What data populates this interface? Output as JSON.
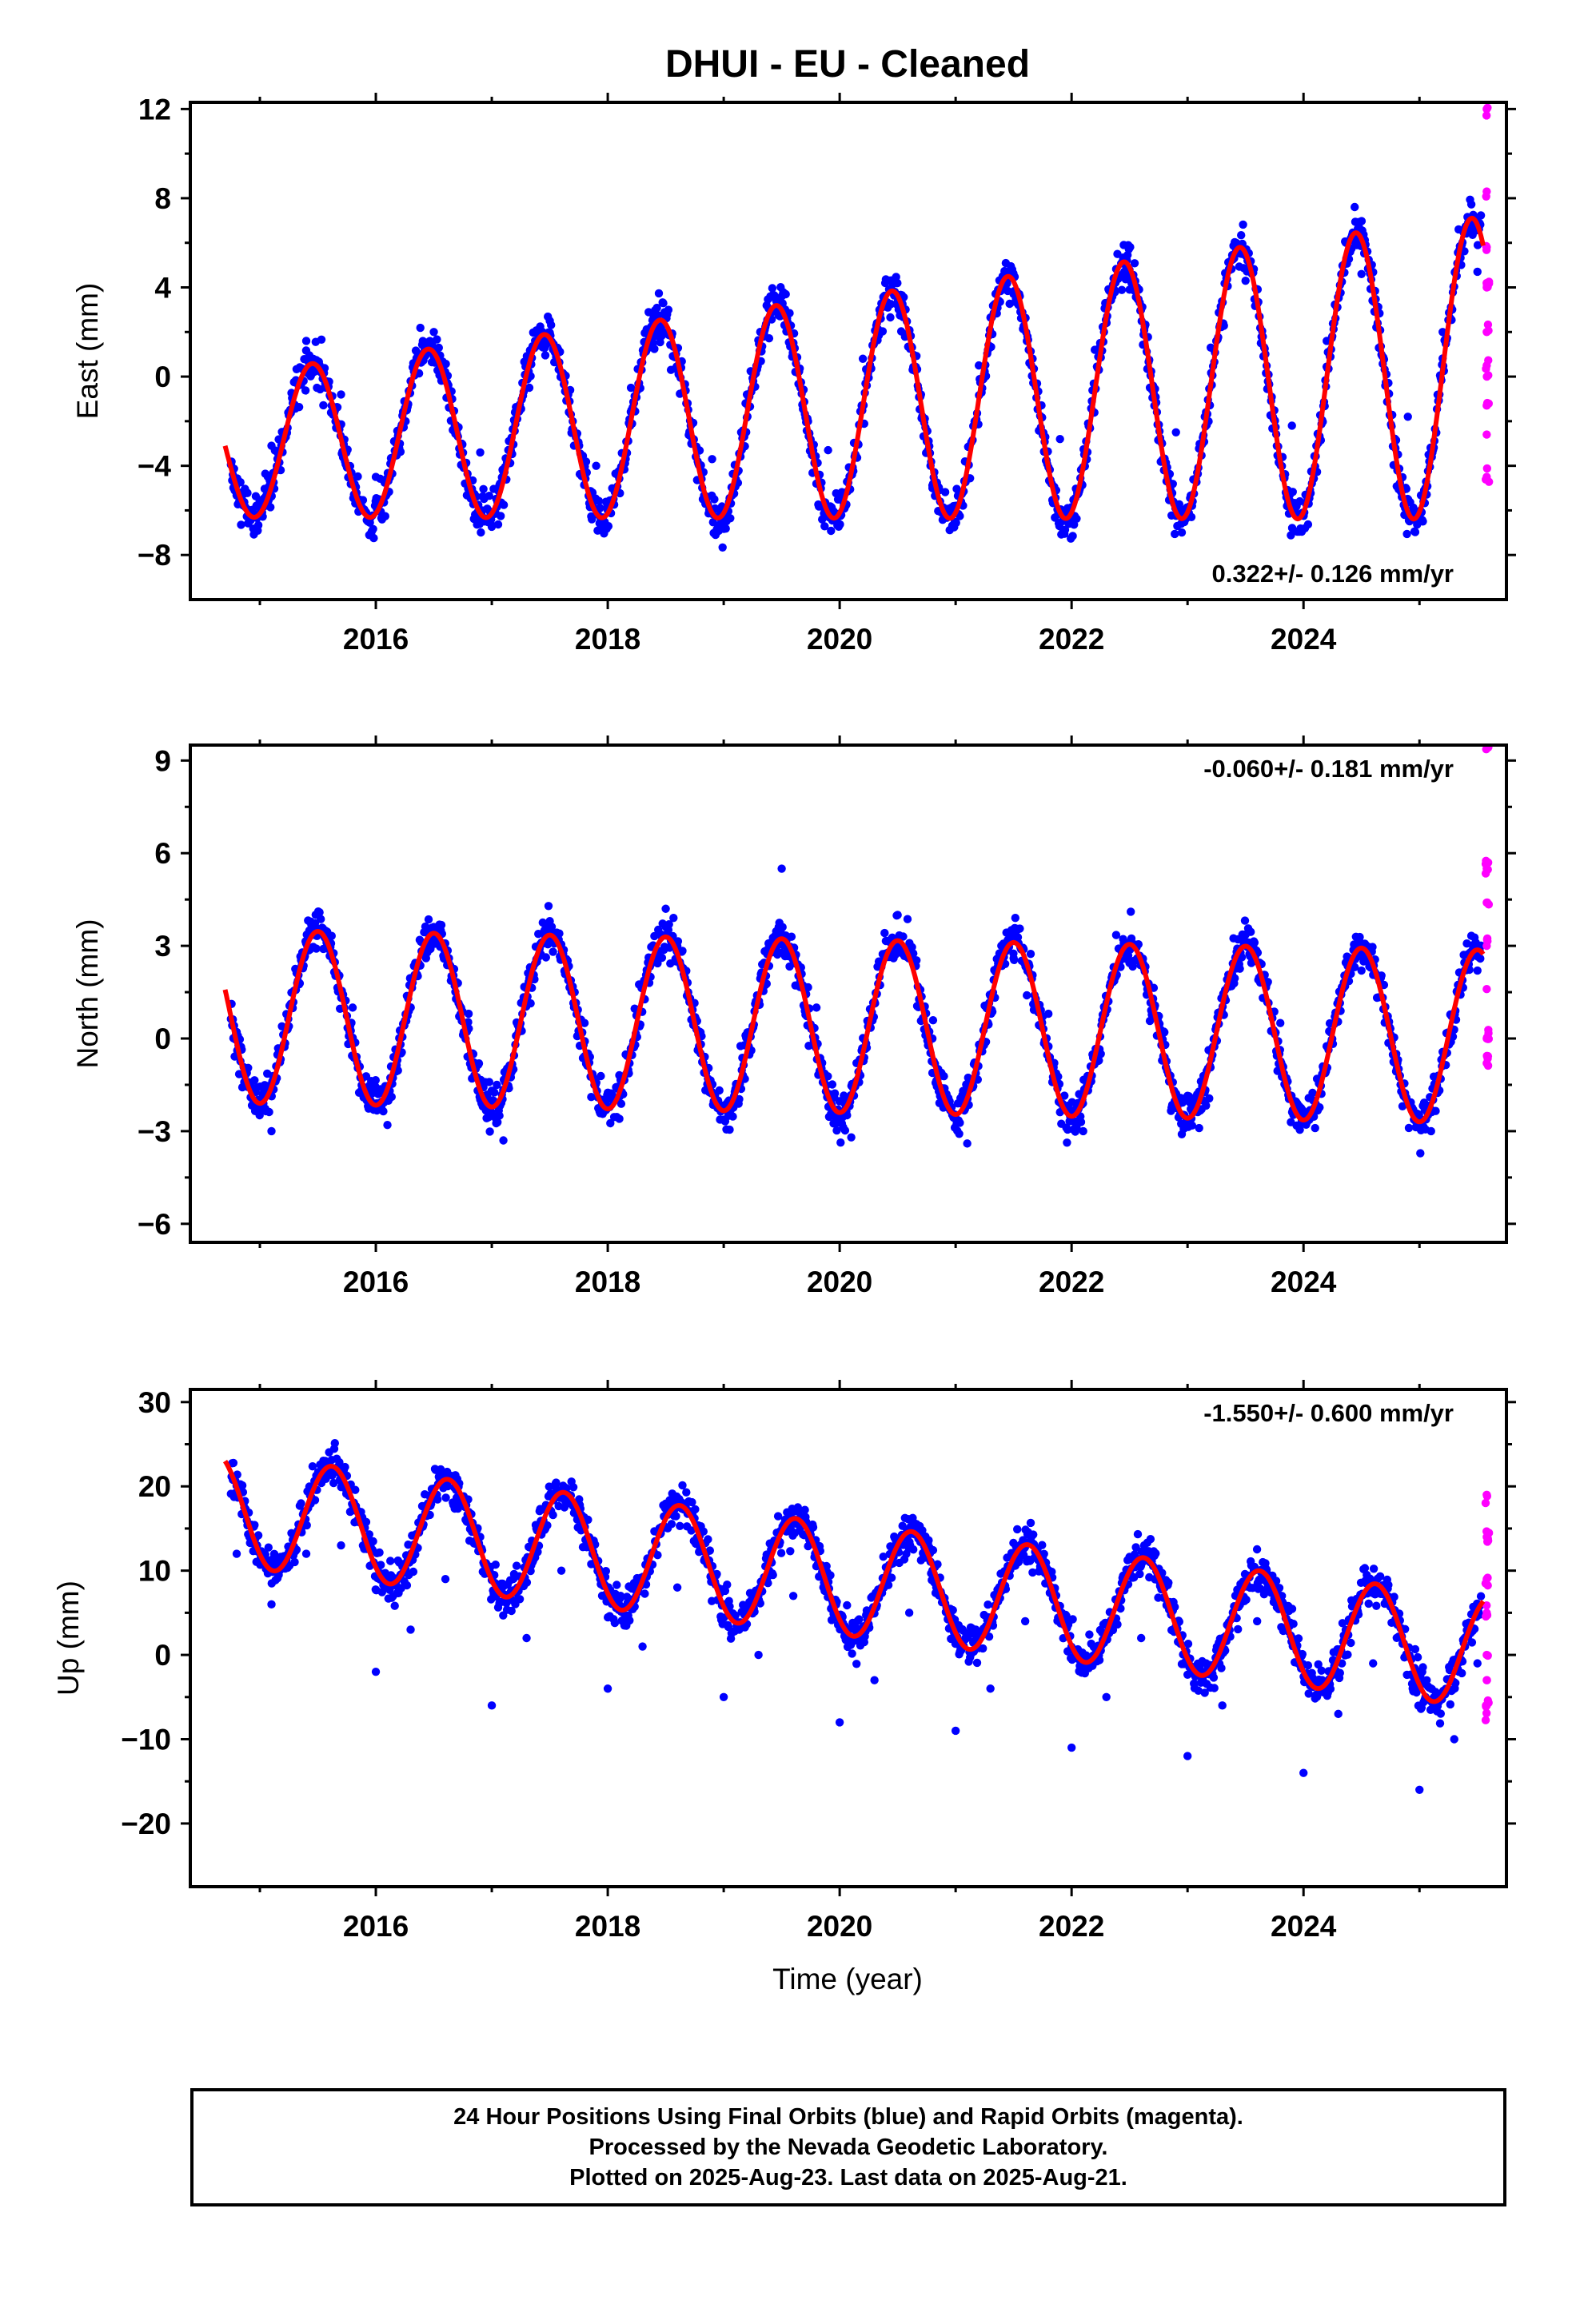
{
  "title": "DHUI  - EU - Cleaned",
  "xlabel": "Time (year)",
  "footer": {
    "line1": "24 Hour Positions Using Final Orbits (blue) and Rapid Orbits (magenta).",
    "line2": "Processed by the Nevada Geodetic Laboratory.",
    "line3": "Plotted on 2025-Aug-23. Last data on 2025-Aug-21."
  },
  "colors": {
    "final": "#0000ff",
    "rapid": "#ff00ff",
    "model": "#ff0000",
    "axes": "#000000"
  },
  "chart_data": [
    {
      "type": "scatter",
      "ylabel": "East (mm)",
      "rate_label": "0.322+/- 0.126 mm/yr",
      "rate_position": "bottom-right",
      "xlim": [
        2014.4,
        2025.75
      ],
      "ylim": [
        -10,
        12.3
      ],
      "xticks": [
        2016,
        2018,
        2020,
        2022,
        2024
      ],
      "yticks": [
        12,
        8,
        4,
        0,
        -4,
        -8
      ],
      "model": {
        "start": 2014.7,
        "end": 2025.55,
        "offset": -1.4,
        "slope": 0.322,
        "amplitude": 3.3,
        "amplitude_growth": 0.01,
        "peak_year_fraction": 0.45
      },
      "series": [
        {
          "values": [
            [
              2014.8,
              -4.8
            ],
            [
              2015.1,
              -3.1
            ],
            [
              2015.4,
              1.6
            ],
            [
              2015.7,
              -0.8
            ],
            [
              2016.0,
              -4.5
            ],
            [
              2016.3,
              -0.2
            ],
            [
              2016.5,
              2.0
            ],
            [
              2016.9,
              -3.4
            ],
            [
              2017.2,
              -1.6
            ],
            [
              2017.5,
              2.5
            ],
            [
              2017.9,
              -4.0
            ],
            [
              2018.2,
              -0.5
            ],
            [
              2018.5,
              2.7
            ],
            [
              2018.9,
              -3.7
            ],
            [
              2019.2,
              -0.8
            ],
            [
              2019.5,
              3.0
            ],
            [
              2019.9,
              -3.3
            ],
            [
              2020.2,
              0.8
            ],
            [
              2020.5,
              3.2
            ],
            [
              2020.8,
              -5.0
            ],
            [
              2021.2,
              0.5
            ],
            [
              2021.5,
              3.7
            ],
            [
              2021.9,
              -2.8
            ],
            [
              2022.2,
              1.2
            ],
            [
              2022.5,
              3.9
            ],
            [
              2022.9,
              -2.5
            ],
            [
              2023.2,
              1.3
            ],
            [
              2023.5,
              4.3
            ],
            [
              2023.9,
              -2.2
            ],
            [
              2024.2,
              1.6
            ],
            [
              2024.5,
              4.6
            ],
            [
              2024.9,
              -1.8
            ],
            [
              2025.2,
              2.0
            ],
            [
              2025.5,
              4.7
            ]
          ]
        },
        {
          "values": [
            [
              2025.58,
              12.0
            ],
            [
              2025.58,
              8.3
            ],
            [
              2025.58,
              5.8
            ],
            [
              2025.58,
              4.0
            ],
            [
              2025.58,
              2.0
            ],
            [
              2025.58,
              0.5
            ],
            [
              2025.58,
              -1.3
            ],
            [
              2025.58,
              -2.6
            ],
            [
              2025.58,
              -4.5
            ]
          ]
        }
      ]
    },
    {
      "type": "scatter",
      "ylabel": "North (mm)",
      "rate_label": "-0.060+/- 0.181 mm/yr",
      "rate_position": "top-right",
      "xlim": [
        2014.4,
        2025.75
      ],
      "ylim": [
        -6.6,
        9.5
      ],
      "xticks": [
        2016,
        2018,
        2020,
        2022,
        2024
      ],
      "yticks": [
        9,
        6,
        3,
        0,
        -3,
        -6
      ],
      "model": {
        "start": 2014.7,
        "end": 2025.55,
        "offset": 0.4,
        "slope": -0.06,
        "amplitude": 2.8,
        "amplitude_growth": 0.0,
        "peak_year_fraction": 0.5
      },
      "series": [
        {
          "values": [
            [
              2014.8,
              0.2
            ],
            [
              2015.1,
              -3.0
            ],
            [
              2015.5,
              3.5
            ],
            [
              2015.8,
              1.0
            ],
            [
              2016.1,
              -2.8
            ],
            [
              2016.5,
              3.3
            ],
            [
              2016.8,
              0.8
            ],
            [
              2017.1,
              -3.3
            ],
            [
              2017.5,
              3.8
            ],
            [
              2017.8,
              0.5
            ],
            [
              2018.1,
              -2.6
            ],
            [
              2018.5,
              4.2
            ],
            [
              2018.8,
              0.2
            ],
            [
              2019.1,
              -2.0
            ],
            [
              2019.5,
              5.5
            ],
            [
              2019.8,
              1.0
            ],
            [
              2020.1,
              -3.2
            ],
            [
              2020.5,
              4.0
            ],
            [
              2020.8,
              0.0
            ],
            [
              2021.1,
              -3.4
            ],
            [
              2021.5,
              2.6
            ],
            [
              2021.8,
              0.8
            ],
            [
              2022.1,
              -3.0
            ],
            [
              2022.5,
              3.0
            ],
            [
              2022.8,
              0.2
            ],
            [
              2023.1,
              -2.9
            ],
            [
              2023.5,
              3.0
            ],
            [
              2023.8,
              0.5
            ],
            [
              2024.1,
              -2.9
            ],
            [
              2024.5,
              2.2
            ],
            [
              2024.8,
              -0.5
            ],
            [
              2025.1,
              -3.0
            ],
            [
              2025.5,
              2.2
            ]
          ]
        },
        {
          "values": [
            [
              2025.58,
              9.6
            ],
            [
              2025.58,
              5.5
            ],
            [
              2025.58,
              4.4
            ],
            [
              2025.58,
              3.0
            ],
            [
              2025.58,
              1.6
            ],
            [
              2025.58,
              0.0
            ],
            [
              2025.58,
              -0.8
            ]
          ]
        }
      ]
    },
    {
      "type": "scatter",
      "ylabel": "Up (mm)",
      "rate_label": "-1.550+/- 0.600 mm/yr",
      "rate_position": "top-right",
      "xlim": [
        2014.4,
        2025.75
      ],
      "ylim": [
        -27.5,
        31.5
      ],
      "xticks": [
        2016,
        2018,
        2020,
        2022,
        2024
      ],
      "yticks": [
        30,
        20,
        10,
        0,
        -10,
        -20
      ],
      "model": {
        "start": 2014.7,
        "end": 2025.55,
        "offset": 9.0,
        "slope": -1.55,
        "amplitude": 6.6,
        "amplitude_growth": 0.0,
        "peak_year_fraction": 0.62
      },
      "series": [
        {
          "values": [
            [
              2014.8,
              12.0
            ],
            [
              2015.1,
              6.0
            ],
            [
              2015.4,
              12.0
            ],
            [
              2015.7,
              13.0
            ],
            [
              2016.0,
              -2.0
            ],
            [
              2016.3,
              3.0
            ],
            [
              2016.6,
              9.0
            ],
            [
              2017.0,
              -6.0
            ],
            [
              2017.3,
              2.0
            ],
            [
              2017.6,
              10.0
            ],
            [
              2018.0,
              -4.0
            ],
            [
              2018.3,
              1.0
            ],
            [
              2018.6,
              8.0
            ],
            [
              2019.0,
              -5.0
            ],
            [
              2019.3,
              0.0
            ],
            [
              2019.6,
              7.0
            ],
            [
              2020.0,
              -8.0
            ],
            [
              2020.3,
              -3.0
            ],
            [
              2020.6,
              5.0
            ],
            [
              2021.0,
              -9.0
            ],
            [
              2021.3,
              -4.0
            ],
            [
              2021.6,
              4.0
            ],
            [
              2022.0,
              -11.0
            ],
            [
              2022.3,
              -5.0
            ],
            [
              2022.6,
              2.0
            ],
            [
              2023.0,
              -12.0
            ],
            [
              2023.3,
              -6.0
            ],
            [
              2023.6,
              4.0
            ],
            [
              2024.0,
              -14.0
            ],
            [
              2024.3,
              -7.0
            ],
            [
              2024.6,
              -1.0
            ],
            [
              2025.0,
              -16.0
            ],
            [
              2025.3,
              -10.0
            ],
            [
              2025.5,
              -1.0
            ]
          ]
        },
        {
          "values": [
            [
              2025.58,
              19.0
            ],
            [
              2025.58,
              14.0
            ],
            [
              2025.58,
              9.0
            ],
            [
              2025.58,
              5.0
            ],
            [
              2025.58,
              0.0
            ],
            [
              2025.58,
              -3.0
            ],
            [
              2025.58,
              -6.0
            ]
          ]
        }
      ]
    }
  ]
}
